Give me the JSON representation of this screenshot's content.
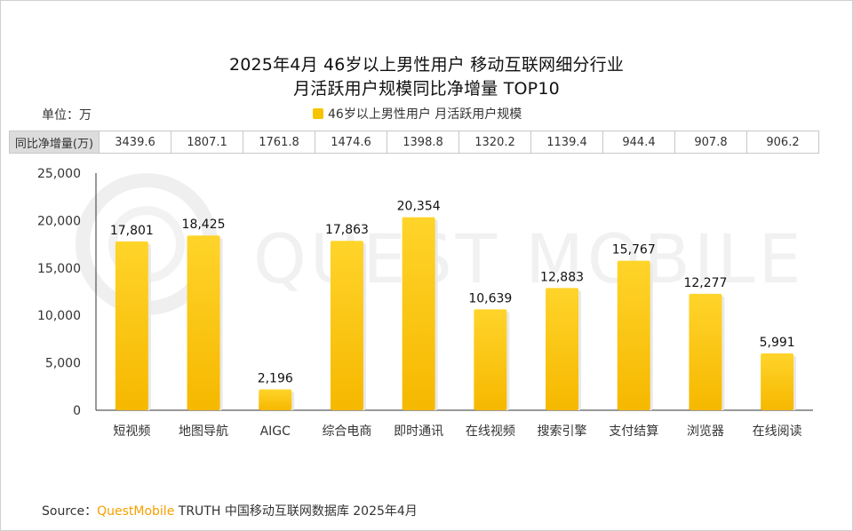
{
  "title_line1": "2025年4月 46岁以上男性用户 移动互联网细分行业",
  "title_line2": "月活跃用户规模同比净增量 TOP10",
  "unit_label": "单位：万",
  "legend_label": "46岁以上男性用户 月活跃用户规模",
  "watermark_text": "QUEST MOBILE",
  "yoy_header": "同比净增量(万)",
  "yoy_values": [
    "3439.6",
    "1807.1",
    "1761.8",
    "1474.6",
    "1398.8",
    "1320.2",
    "1139.4",
    "944.4",
    "907.8",
    "906.2"
  ],
  "source": {
    "prefix": "Source：",
    "brand": "QuestMobile",
    "rest": " TRUTH 中国移动互联网数据库 2025年4月"
  },
  "colors": {
    "bar": "#f7c400",
    "bar_top": "#ffd530",
    "brand": "#f5a000"
  },
  "chart_data": {
    "type": "bar",
    "title": "2025年4月 46岁以上男性用户 移动互联网细分行业 月活跃用户规模同比净增量 TOP10",
    "categories": [
      "短视频",
      "地图导航",
      "AIGC",
      "综合电商",
      "即时通讯",
      "在线视频",
      "搜索引擎",
      "支付结算",
      "浏览器",
      "在线阅读"
    ],
    "values": [
      17801,
      18425,
      2196,
      17863,
      20354,
      10639,
      12883,
      15767,
      12277,
      5991
    ],
    "value_labels": [
      "17,801",
      "18,425",
      "2,196",
      "17,863",
      "20,354",
      "10,639",
      "12,883",
      "15,767",
      "12,277",
      "5,991"
    ],
    "yticks": [
      0,
      5000,
      10000,
      15000,
      20000,
      25000
    ],
    "ytick_labels": [
      "0",
      "5,000",
      "10,000",
      "15,000",
      "20,000",
      "25,000"
    ],
    "ylim": [
      0,
      25000
    ],
    "xlabel": "",
    "ylabel": "万",
    "legend": "46岁以上男性用户 月活跃用户规模",
    "grid": false
  }
}
